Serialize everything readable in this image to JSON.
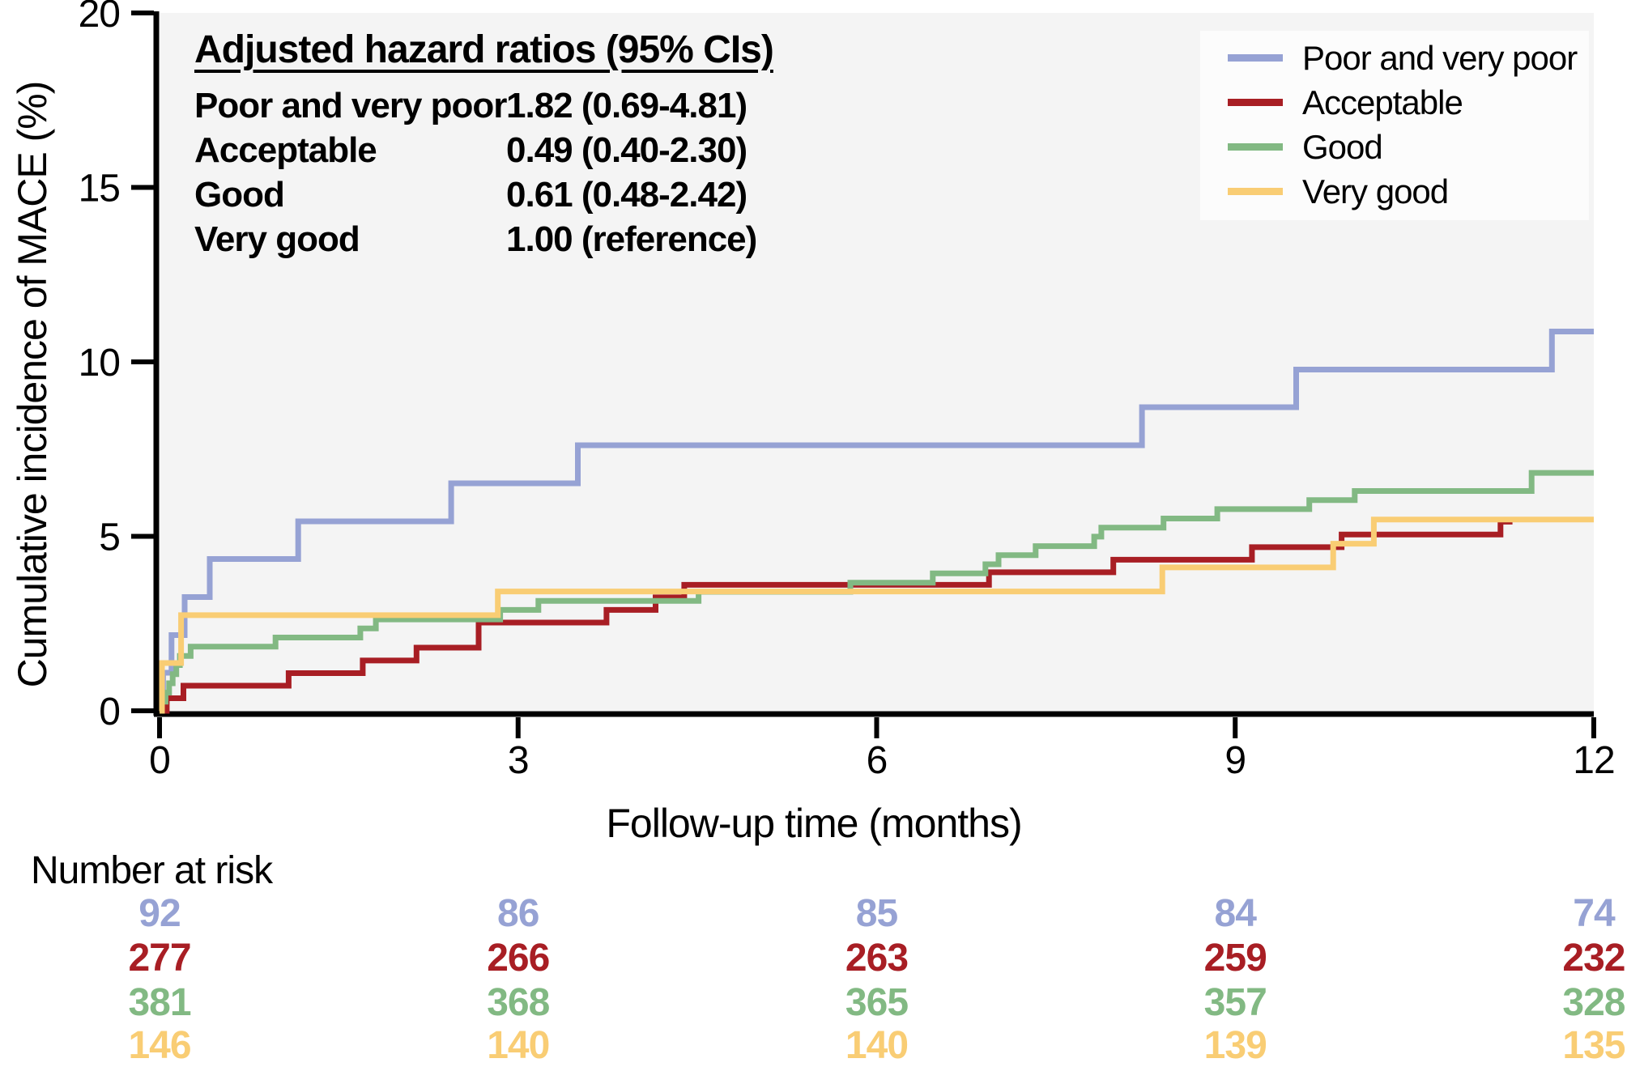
{
  "figure": {
    "x_axis_title": "Follow-up time (months)",
    "y_axis_title": "Cumulative incidence of MACE (%)"
  },
  "annotation": {
    "title": "Adjusted hazard ratios (95% CIs)",
    "rows": [
      {
        "label": "Poor and very poor",
        "value": "1.82 (0.69-4.81)"
      },
      {
        "label": "Acceptable",
        "value": "0.49 (0.40-2.30)"
      },
      {
        "label": "Good",
        "value": "0.61 (0.48-2.42)"
      },
      {
        "label": "Very good",
        "value": "1.00 (reference)"
      }
    ]
  },
  "colors": {
    "plot_background": "#f4f4f4",
    "axis": "#000000",
    "poor_and_very_poor": "#96a2d4",
    "acceptable": "#a81e24",
    "good": "#82b983",
    "very_good": "#f9cd74"
  },
  "number_at_risk": {
    "heading": "Number at risk",
    "times": [
      0,
      3,
      6,
      9,
      12
    ],
    "rows": [
      {
        "series": "Poor and very poor",
        "color": "#96a2d4",
        "values": [
          92,
          86,
          85,
          84,
          74
        ]
      },
      {
        "series": "Acceptable",
        "color": "#a81e24",
        "values": [
          277,
          266,
          263,
          259,
          232
        ]
      },
      {
        "series": "Good",
        "color": "#82b983",
        "values": [
          381,
          368,
          365,
          357,
          328
        ]
      },
      {
        "series": "Very good",
        "color": "#f9cd74",
        "values": [
          146,
          140,
          140,
          139,
          135
        ]
      }
    ]
  },
  "chart_data": {
    "type": "line",
    "subtype": "step_cumulative_incidence",
    "title": "",
    "xlabel": "Follow-up time (months)",
    "ylabel": "Cumulative incidence of MACE (%)",
    "xlim": [
      0,
      12
    ],
    "ylim": [
      0,
      20
    ],
    "x_ticks": [
      0,
      3,
      6,
      9,
      12
    ],
    "y_ticks": [
      0,
      5,
      10,
      15,
      20
    ],
    "grid": false,
    "legend_position": "top-right",
    "series": [
      {
        "name": "Poor and very poor",
        "color": "#96a2d4",
        "end_month": 12,
        "points": [
          [
            0,
            0
          ],
          [
            0.03,
            1.09
          ],
          [
            0.1,
            2.17
          ],
          [
            0.21,
            3.26
          ],
          [
            0.42,
            4.35
          ],
          [
            1.16,
            5.43
          ],
          [
            2.44,
            6.52
          ],
          [
            3.5,
            7.61
          ],
          [
            8.22,
            8.7
          ],
          [
            9.51,
            9.78
          ],
          [
            11.65,
            10.87
          ]
        ]
      },
      {
        "name": "Acceptable",
        "color": "#a81e24",
        "end_month": 11.32,
        "points": [
          [
            0,
            0
          ],
          [
            0.06,
            0.36
          ],
          [
            0.2,
            0.72
          ],
          [
            1.08,
            1.08
          ],
          [
            1.7,
            1.44
          ],
          [
            2.15,
            1.81
          ],
          [
            2.67,
            2.53
          ],
          [
            3.74,
            2.89
          ],
          [
            4.15,
            3.25
          ],
          [
            4.39,
            3.61
          ],
          [
            6.94,
            3.97
          ],
          [
            7.98,
            4.33
          ],
          [
            9.14,
            4.69
          ],
          [
            9.89,
            5.05
          ],
          [
            11.22,
            5.42
          ]
        ]
      },
      {
        "name": "Good",
        "color": "#82b983",
        "end_month": 12,
        "points": [
          [
            0,
            0
          ],
          [
            0.02,
            0.26
          ],
          [
            0.05,
            0.52
          ],
          [
            0.08,
            0.79
          ],
          [
            0.11,
            1.05
          ],
          [
            0.14,
            1.31
          ],
          [
            0.17,
            1.57
          ],
          [
            0.26,
            1.84
          ],
          [
            0.97,
            2.1
          ],
          [
            1.68,
            2.36
          ],
          [
            1.81,
            2.62
          ],
          [
            2.85,
            2.89
          ],
          [
            3.17,
            3.15
          ],
          [
            4.51,
            3.41
          ],
          [
            5.78,
            3.67
          ],
          [
            6.47,
            3.94
          ],
          [
            6.91,
            4.2
          ],
          [
            7.02,
            4.46
          ],
          [
            7.33,
            4.72
          ],
          [
            7.82,
            4.99
          ],
          [
            7.88,
            5.25
          ],
          [
            8.4,
            5.51
          ],
          [
            8.85,
            5.78
          ],
          [
            9.62,
            6.04
          ],
          [
            10.0,
            6.3
          ],
          [
            11.48,
            6.82
          ]
        ]
      },
      {
        "name": "Very good",
        "color": "#f9cd74",
        "end_month": 12,
        "points": [
          [
            0,
            0
          ],
          [
            0.02,
            1.37
          ],
          [
            0.18,
            2.74
          ],
          [
            2.83,
            3.42
          ],
          [
            8.39,
            4.11
          ],
          [
            9.82,
            4.79
          ],
          [
            10.16,
            5.48
          ]
        ]
      }
    ]
  }
}
